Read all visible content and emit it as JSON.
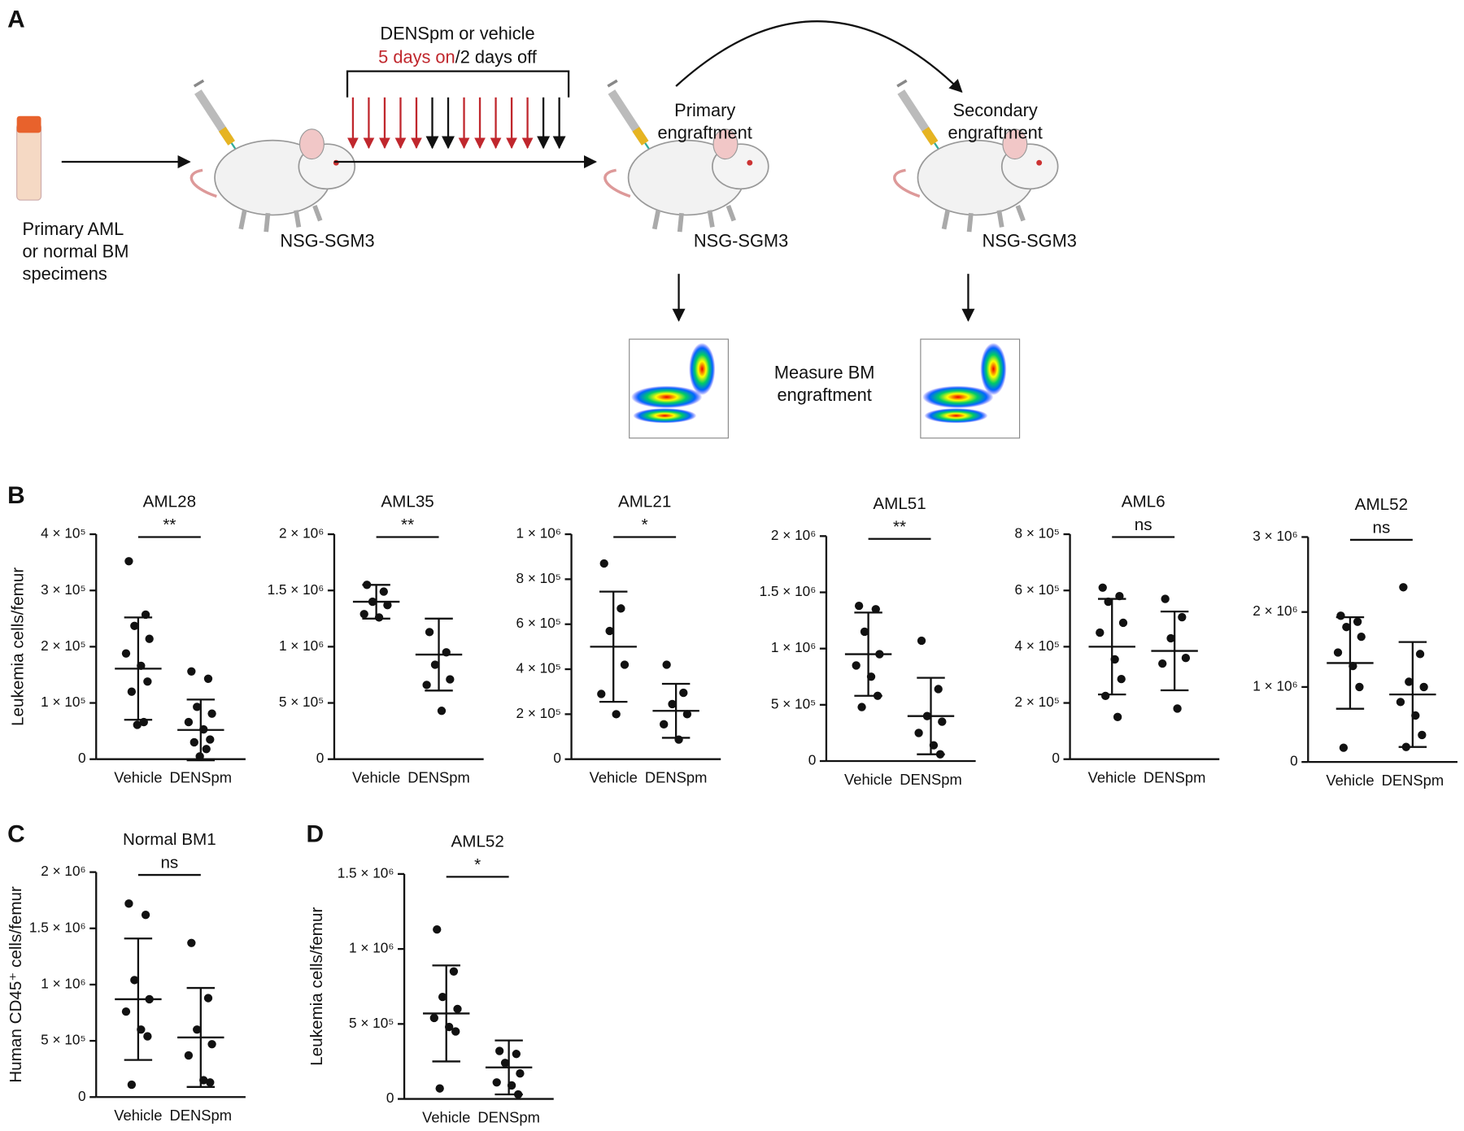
{
  "panels": {
    "a": "A",
    "b": "B",
    "c": "C",
    "d": "D"
  },
  "diagram": {
    "specimen_label": [
      "Primary AML",
      "or normal BM",
      "specimens"
    ],
    "mouse_label": "NSG-SGM3",
    "treatment": "DENSpm or vehicle",
    "schedule_on": "5 days on",
    "schedule_off": "/2 days off",
    "primary": [
      "Primary",
      "engraftment"
    ],
    "primary_mouse": "NSG-SGM3",
    "secondary": [
      "Secondary",
      "engraftment"
    ],
    "secondary_mouse": "NSG-SGM3",
    "measure": [
      "Measure BM",
      "engraftment"
    ]
  },
  "chart_data": [
    {
      "type": "dotplot",
      "title": "AML28",
      "ylabel": "Leukemia cells/femur",
      "significance": "**",
      "categories": [
        "Vehicle",
        "DENSpm"
      ],
      "groups": [
        {
          "values": [
            352000,
            257000,
            237000,
            214000,
            188000,
            166000,
            138000,
            120000,
            66000,
            61000
          ],
          "mean": 161000,
          "sd": 91000
        },
        {
          "values": [
            156000,
            143000,
            93000,
            81000,
            66000,
            53000,
            35000,
            30000,
            18000,
            5000
          ],
          "mean": 52000,
          "sd": 54000
        }
      ],
      "ylim": [
        0,
        400000
      ],
      "yticks": [
        0,
        {
          "value": 100000,
          "label": "1 × 10⁵"
        },
        {
          "value": 200000,
          "label": "2 × 10⁵"
        },
        {
          "value": 300000,
          "label": "3 × 10⁵"
        },
        {
          "value": 400000,
          "label": "4 × 10⁵"
        }
      ]
    },
    {
      "type": "dotplot",
      "title": "AML35",
      "significance": "**",
      "categories": [
        "Vehicle",
        "DENSpm"
      ],
      "groups": [
        {
          "values": [
            1550000,
            1490000,
            1400000,
            1370000,
            1290000,
            1260000
          ],
          "mean": 1400000,
          "sd": 150000
        },
        {
          "values": [
            1130000,
            950000,
            840000,
            710000,
            660000,
            430000
          ],
          "mean": 930000,
          "sd": 320000
        }
      ],
      "ylim": [
        0,
        2000000
      ],
      "yticks": [
        0,
        {
          "value": 500000,
          "label": "5 × 10⁵"
        },
        {
          "value": 1000000,
          "label": "1 × 10⁶"
        },
        {
          "value": 1500000,
          "label": "1.5 × 10⁶"
        },
        {
          "value": 2000000,
          "label": "2 × 10⁶"
        }
      ]
    },
    {
      "type": "dotplot",
      "title": "AML21",
      "significance": "*",
      "categories": [
        "Vehicle",
        "DENSpm"
      ],
      "groups": [
        {
          "values": [
            870000,
            670000,
            570000,
            420000,
            290000,
            200000
          ],
          "mean": 500000,
          "sd": 245000
        },
        {
          "values": [
            420000,
            295000,
            245000,
            200000,
            155000,
            87000
          ],
          "mean": 215000,
          "sd": 120000
        }
      ],
      "ylim": [
        0,
        1000000
      ],
      "yticks": [
        0,
        {
          "value": 200000,
          "label": "2 × 10⁵"
        },
        {
          "value": 400000,
          "label": "4 × 10⁵"
        },
        {
          "value": 600000,
          "label": "6 × 10⁵"
        },
        {
          "value": 800000,
          "label": "8 × 10⁵"
        },
        {
          "value": 1000000,
          "label": "1 × 10⁶"
        }
      ]
    },
    {
      "type": "dotplot",
      "title": "AML51",
      "significance": "**",
      "categories": [
        "Vehicle",
        "DENSpm"
      ],
      "groups": [
        {
          "values": [
            1380000,
            1350000,
            1150000,
            950000,
            850000,
            750000,
            580000,
            480000
          ],
          "mean": 950000,
          "sd": 370000
        },
        {
          "values": [
            1070000,
            640000,
            400000,
            350000,
            250000,
            140000,
            60000
          ],
          "mean": 400000,
          "sd": 340000
        }
      ],
      "ylim": [
        0,
        2000000
      ],
      "yticks": [
        0,
        {
          "value": 500000,
          "label": "5 × 10⁵"
        },
        {
          "value": 1000000,
          "label": "1 × 10⁶"
        },
        {
          "value": 1500000,
          "label": "1.5 × 10⁶"
        },
        {
          "value": 2000000,
          "label": "2 × 10⁶"
        }
      ]
    },
    {
      "type": "dotplot",
      "title": "AML6",
      "significance": "ns",
      "categories": [
        "Vehicle",
        "DENSpm"
      ],
      "groups": [
        {
          "values": [
            610000,
            580000,
            560000,
            485000,
            450000,
            355000,
            285000,
            225000,
            150000
          ],
          "mean": 400000,
          "sd": 170000
        },
        {
          "values": [
            570000,
            505000,
            430000,
            360000,
            340000,
            180000
          ],
          "mean": 385000,
          "sd": 140000
        }
      ],
      "ylim": [
        0,
        800000
      ],
      "yticks": [
        0,
        {
          "value": 200000,
          "label": "2 × 10⁵"
        },
        {
          "value": 400000,
          "label": "4 × 10⁵"
        },
        {
          "value": 600000,
          "label": "6 × 10⁵"
        },
        {
          "value": 800000,
          "label": "8 × 10⁵"
        }
      ]
    },
    {
      "type": "dotplot",
      "title": "AML52",
      "significance": "ns",
      "categories": [
        "Vehicle",
        "DENSpm"
      ],
      "groups": [
        {
          "values": [
            1950000,
            1870000,
            1800000,
            1670000,
            1460000,
            1280000,
            1000000,
            190000
          ],
          "mean": 1320000,
          "sd": 610000
        },
        {
          "values": [
            2330000,
            1440000,
            1070000,
            1000000,
            800000,
            620000,
            360000,
            200000
          ],
          "mean": 900000,
          "sd": 700000
        }
      ],
      "ylim": [
        0,
        3000000
      ],
      "yticks": [
        0,
        {
          "value": 1000000,
          "label": "1 × 10⁶"
        },
        {
          "value": 2000000,
          "label": "2 × 10⁶"
        },
        {
          "value": 3000000,
          "label": "3 × 10⁶"
        }
      ]
    },
    {
      "type": "dotplot",
      "title": "Normal BM1",
      "ylabel": "Human CD45⁺ cells/femur",
      "significance": "ns",
      "categories": [
        "Vehicle",
        "DENSpm"
      ],
      "groups": [
        {
          "values": [
            1720000,
            1620000,
            1040000,
            870000,
            760000,
            600000,
            540000,
            110000
          ],
          "mean": 870000,
          "sd": 540000
        },
        {
          "values": [
            1370000,
            880000,
            600000,
            470000,
            370000,
            150000,
            130000
          ],
          "mean": 530000,
          "sd": 440000
        }
      ],
      "ylim": [
        0,
        2000000
      ],
      "yticks": [
        0,
        {
          "value": 500000,
          "label": "5 × 10⁵"
        },
        {
          "value": 1000000,
          "label": "1 × 10⁶"
        },
        {
          "value": 1500000,
          "label": "1.5 × 10⁶"
        },
        {
          "value": 2000000,
          "label": "2 × 10⁶"
        }
      ]
    },
    {
      "type": "dotplot",
      "title": "AML52",
      "ylabel": "Leukemia cells/femur",
      "significance": "*",
      "categories": [
        "Vehicle",
        "DENSpm"
      ],
      "groups": [
        {
          "values": [
            1130000,
            850000,
            680000,
            600000,
            540000,
            480000,
            450000,
            70000
          ],
          "mean": 570000,
          "sd": 320000
        },
        {
          "values": [
            320000,
            300000,
            240000,
            170000,
            110000,
            90000,
            30000
          ],
          "mean": 210000,
          "sd": 180000
        }
      ],
      "ylim": [
        0,
        1500000
      ],
      "yticks": [
        0,
        {
          "value": 500000,
          "label": "5 × 10⁵"
        },
        {
          "value": 1000000,
          "label": "1 × 10⁶"
        },
        {
          "value": 1500000,
          "label": "1.5 × 10⁶"
        }
      ]
    }
  ]
}
